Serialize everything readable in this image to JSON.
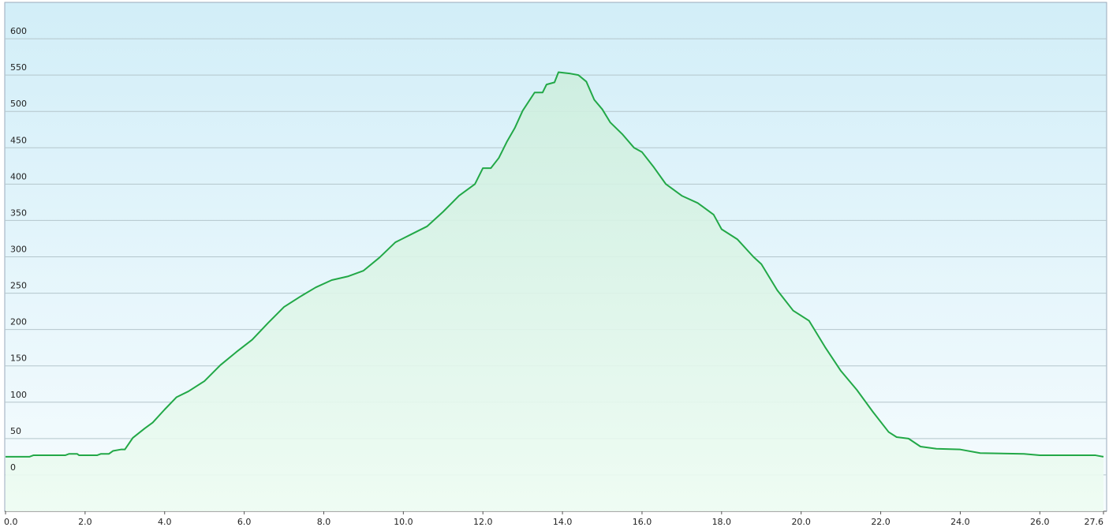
{
  "chart_data": {
    "type": "area",
    "x": [
      0.0,
      0.6,
      0.7,
      1.5,
      1.6,
      1.8,
      1.85,
      2.3,
      2.4,
      2.6,
      2.7,
      2.9,
      3.0,
      3.2,
      3.5,
      3.7,
      4.0,
      4.3,
      4.6,
      5.0,
      5.4,
      5.8,
      6.2,
      6.6,
      7.0,
      7.4,
      7.8,
      8.2,
      8.6,
      9.0,
      9.4,
      9.8,
      10.2,
      10.6,
      11.0,
      11.4,
      11.8,
      12.0,
      12.2,
      12.4,
      12.6,
      12.8,
      13.0,
      13.3,
      13.5,
      13.6,
      13.8,
      13.9,
      14.2,
      14.4,
      14.6,
      14.8,
      15.0,
      15.2,
      15.5,
      15.8,
      16.0,
      16.3,
      16.6,
      17.0,
      17.4,
      17.8,
      18.0,
      18.4,
      18.8,
      19.0,
      19.4,
      19.8,
      20.2,
      20.6,
      21.0,
      21.4,
      21.8,
      22.2,
      22.4,
      22.7,
      23.0,
      23.4,
      24.0,
      24.5,
      25.6,
      26.0,
      27.4,
      27.6
    ],
    "values": [
      25,
      25,
      27,
      27,
      29,
      29,
      27,
      27,
      29,
      29,
      33,
      35,
      35,
      51,
      64,
      72,
      90,
      107,
      115,
      129,
      151,
      169,
      186,
      209,
      231,
      245,
      258,
      268,
      273,
      281,
      299,
      320,
      331,
      342,
      362,
      384,
      400,
      422,
      422,
      436,
      458,
      477,
      501,
      526,
      526,
      537,
      540,
      554,
      552,
      550,
      541,
      516,
      503,
      485,
      469,
      450,
      444,
      423,
      400,
      384,
      374,
      358,
      338,
      324,
      300,
      290,
      254,
      226,
      212,
      176,
      143,
      117,
      87,
      59,
      52,
      50,
      39,
      36,
      35,
      30,
      29,
      27,
      27,
      25
    ],
    "color": "#22a847",
    "xlim": [
      0,
      27.6
    ],
    "ylim": [
      -50,
      650
    ],
    "xticks": [
      {
        "value": 0,
        "label": "0.0"
      },
      {
        "value": 2,
        "label": "2.0"
      },
      {
        "value": 4,
        "label": "4.0"
      },
      {
        "value": 6,
        "label": "6.0"
      },
      {
        "value": 8,
        "label": "8.0"
      },
      {
        "value": 10,
        "label": "10.0"
      },
      {
        "value": 12,
        "label": "12.0"
      },
      {
        "value": 14,
        "label": "14.0"
      },
      {
        "value": 16,
        "label": "16.0"
      },
      {
        "value": 18,
        "label": "18.0"
      },
      {
        "value": 20,
        "label": "20.0"
      },
      {
        "value": 22,
        "label": "22.0"
      },
      {
        "value": 24,
        "label": "24.0"
      },
      {
        "value": 26,
        "label": "26.0"
      },
      {
        "value": 27.6,
        "label": "27.6"
      }
    ],
    "yticks": [
      0,
      50,
      100,
      150,
      200,
      250,
      300,
      350,
      400,
      450,
      500,
      550,
      600
    ],
    "grid": true
  }
}
